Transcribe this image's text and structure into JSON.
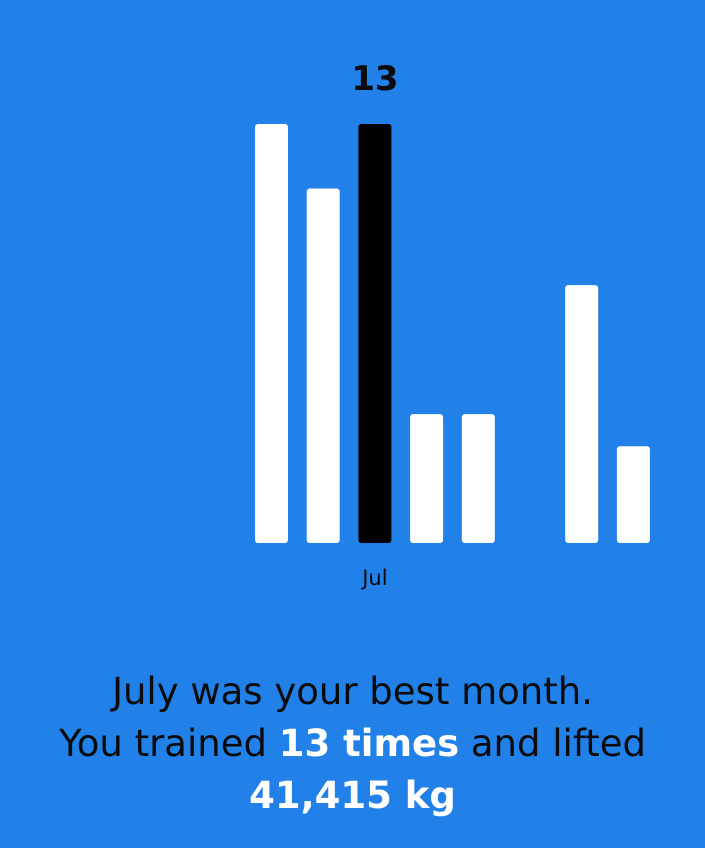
{
  "chart_data": {
    "type": "bar",
    "categories": [
      "",
      "",
      "Jul",
      "",
      "",
      "",
      "",
      ""
    ],
    "values": [
      13,
      11,
      13,
      4,
      4,
      0,
      8,
      3
    ],
    "highlight_index": 2,
    "highlight_value_label": "13",
    "highlight_category_label": "Jul",
    "ylim": [
      0,
      13
    ],
    "grid": false,
    "legend": "none",
    "colors": {
      "bar": "#ffffff",
      "highlight": "#000000",
      "background": "#2181e8"
    }
  },
  "summary": {
    "line1": "July was your best month.",
    "line2_pre": "You trained ",
    "times": "13 times",
    "line2_post": " and lifted",
    "weight": "41,415 kg"
  }
}
